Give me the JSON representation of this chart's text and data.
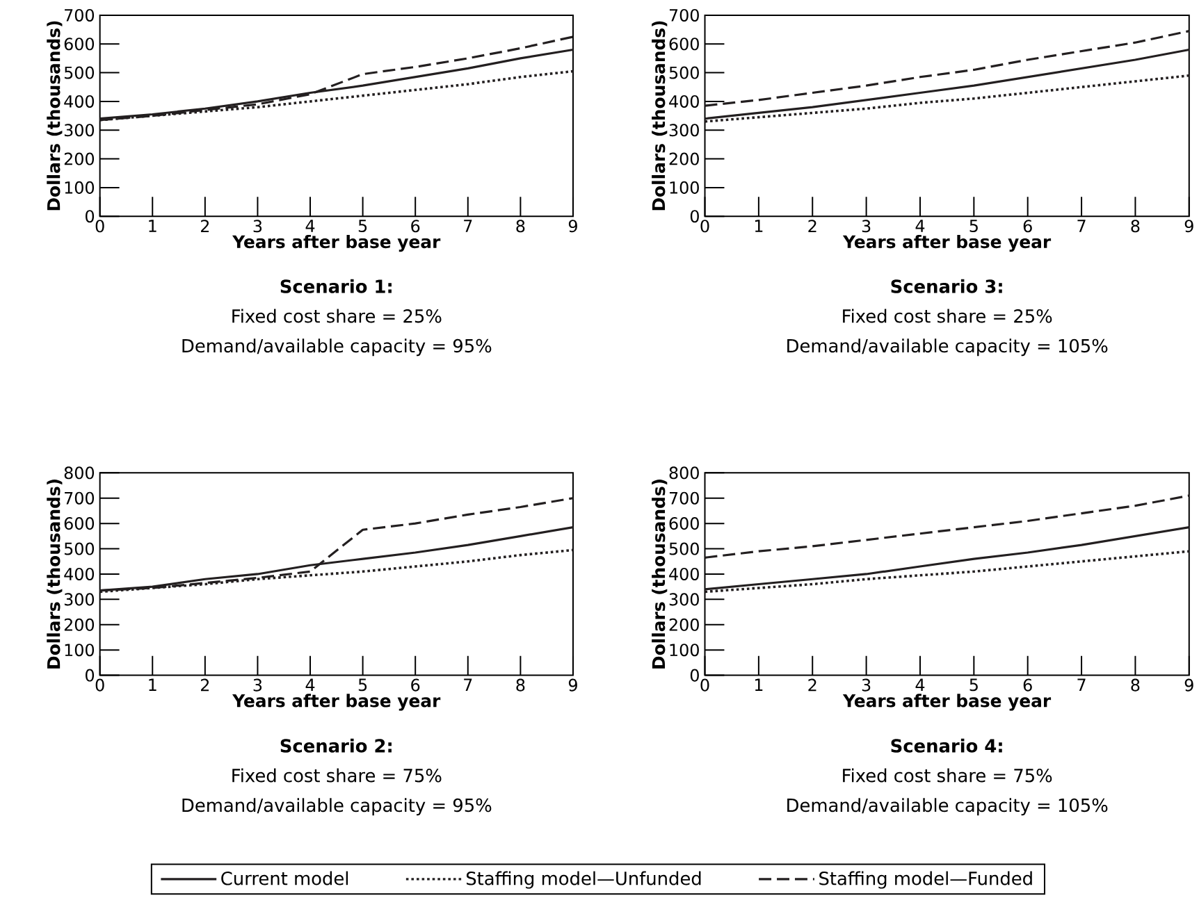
{
  "chart_data": [
    {
      "type": "line",
      "title": "Scenario 1:",
      "subtitle": "Fixed cost share = 25%",
      "annotations": [
        "Demand/available capacity = 95%"
      ],
      "xlabel": "Years after base year",
      "ylabel": "Dollars (thousands)",
      "x": [
        0,
        1,
        2,
        3,
        4,
        5,
        6,
        7,
        8,
        9
      ],
      "xlim": [
        0,
        9
      ],
      "xticks": [
        0,
        1,
        2,
        3,
        4,
        5,
        6,
        7,
        8,
        9
      ],
      "ylim": [
        0,
        700
      ],
      "yticks": [
        0,
        100,
        200,
        300,
        400,
        500,
        600,
        700
      ],
      "grid": false,
      "legend": false,
      "series": [
        {
          "color": "#231f20",
          "line_style": "solid",
          "values": [
            340,
            355,
            375,
            400,
            430,
            455,
            485,
            515,
            550,
            580
          ]
        },
        {
          "color": "#231f20",
          "line_style": "dotted",
          "values": [
            335,
            350,
            365,
            380,
            400,
            420,
            440,
            460,
            485,
            505
          ]
        },
        {
          "color": "#231f20",
          "line_style": "dashed",
          "values": [
            335,
            350,
            370,
            390,
            425,
            495,
            520,
            550,
            585,
            625
          ]
        }
      ]
    },
    {
      "type": "line",
      "title": "Scenario 3:",
      "subtitle": "Fixed cost share = 25%",
      "annotations": [
        "Demand/available capacity = 105%"
      ],
      "xlabel": "Years after base year",
      "ylabel": "Dollars (thousands)",
      "x": [
        0,
        1,
        2,
        3,
        4,
        5,
        6,
        7,
        8,
        9
      ],
      "xlim": [
        0,
        9
      ],
      "xticks": [
        0,
        1,
        2,
        3,
        4,
        5,
        6,
        7,
        8,
        9
      ],
      "ylim": [
        0,
        700
      ],
      "yticks": [
        0,
        100,
        200,
        300,
        400,
        500,
        600,
        700
      ],
      "grid": false,
      "legend": false,
      "series": [
        {
          "color": "#231f20",
          "line_style": "solid",
          "values": [
            340,
            360,
            380,
            405,
            430,
            455,
            485,
            515,
            545,
            580
          ]
        },
        {
          "color": "#231f20",
          "line_style": "dotted",
          "values": [
            330,
            345,
            360,
            375,
            395,
            410,
            430,
            450,
            470,
            490
          ]
        },
        {
          "color": "#231f20",
          "line_style": "dashed",
          "values": [
            385,
            405,
            430,
            455,
            485,
            510,
            545,
            575,
            605,
            645
          ]
        }
      ]
    },
    {
      "type": "line",
      "title": "Scenario 2:",
      "subtitle": "Fixed cost share = 75%",
      "annotations": [
        "Demand/available capacity = 95%"
      ],
      "xlabel": "Years after base year",
      "ylabel": "Dollars (thousands)",
      "x": [
        0,
        1,
        2,
        3,
        4,
        5,
        6,
        7,
        8,
        9
      ],
      "xlim": [
        0,
        9
      ],
      "xticks": [
        0,
        1,
        2,
        3,
        4,
        5,
        6,
        7,
        8,
        9
      ],
      "ylim": [
        0,
        800
      ],
      "yticks": [
        0,
        100,
        200,
        300,
        400,
        500,
        600,
        700,
        800
      ],
      "grid": false,
      "legend": false,
      "series": [
        {
          "color": "#231f20",
          "line_style": "solid",
          "values": [
            335,
            350,
            380,
            400,
            435,
            460,
            485,
            515,
            550,
            585
          ]
        },
        {
          "color": "#231f20",
          "line_style": "dotted",
          "values": [
            330,
            345,
            360,
            380,
            395,
            410,
            430,
            450,
            475,
            495
          ]
        },
        {
          "color": "#231f20",
          "line_style": "dashed",
          "values": [
            335,
            345,
            365,
            385,
            410,
            575,
            600,
            635,
            665,
            700
          ]
        }
      ]
    },
    {
      "type": "line",
      "title": "Scenario 4:",
      "subtitle": "Fixed cost share = 75%",
      "annotations": [
        "Demand/available capacity = 105%"
      ],
      "xlabel": "Years after base year",
      "ylabel": "Dollars (thousands)",
      "x": [
        0,
        1,
        2,
        3,
        4,
        5,
        6,
        7,
        8,
        9
      ],
      "xlim": [
        0,
        9
      ],
      "xticks": [
        0,
        1,
        2,
        3,
        4,
        5,
        6,
        7,
        8,
        9
      ],
      "ylim": [
        0,
        800
      ],
      "yticks": [
        0,
        100,
        200,
        300,
        400,
        500,
        600,
        700,
        800
      ],
      "grid": false,
      "legend": "bottom",
      "series": [
        {
          "name": "Current model",
          "color": "#231f20",
          "line_style": "solid",
          "values": [
            340,
            360,
            380,
            400,
            430,
            460,
            485,
            515,
            550,
            585
          ]
        },
        {
          "name": "Staffing model—Unfunded",
          "color": "#231f20",
          "line_style": "dotted",
          "values": [
            330,
            345,
            360,
            380,
            395,
            410,
            430,
            450,
            470,
            490
          ]
        },
        {
          "name": "Staffing model—Funded",
          "color": "#231f20",
          "line_style": "dashed",
          "values": [
            465,
            490,
            510,
            535,
            560,
            585,
            610,
            640,
            670,
            710
          ]
        }
      ]
    }
  ]
}
